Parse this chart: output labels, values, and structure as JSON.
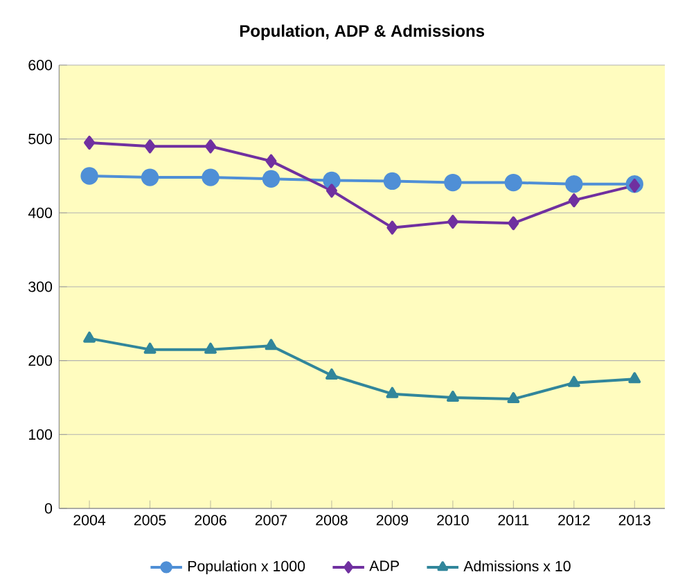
{
  "chart_data": {
    "type": "line",
    "title": "Population, ADP & Admissions",
    "categories": [
      "2004",
      "2005",
      "2006",
      "2007",
      "2008",
      "2009",
      "2010",
      "2011",
      "2012",
      "2013"
    ],
    "series": [
      {
        "name": "Population x 1000",
        "color": "#4f8fd6",
        "marker": "circle",
        "values": [
          450,
          448,
          448,
          446,
          444,
          443,
          441,
          441,
          439,
          439
        ]
      },
      {
        "name": "ADP",
        "color": "#7030a0",
        "marker": "diamond",
        "values": [
          495,
          490,
          490,
          470,
          430,
          380,
          388,
          386,
          417,
          437
        ]
      },
      {
        "name": "Admissions x 10",
        "color": "#31869b",
        "marker": "triangle",
        "values": [
          230,
          215,
          215,
          220,
          180,
          155,
          150,
          148,
          170,
          175
        ]
      }
    ],
    "ylim": [
      0,
      600
    ],
    "yticks": [
      0,
      100,
      200,
      300,
      400,
      500,
      600
    ],
    "grid": "y",
    "legend": "bottom",
    "line_style": "solid"
  }
}
